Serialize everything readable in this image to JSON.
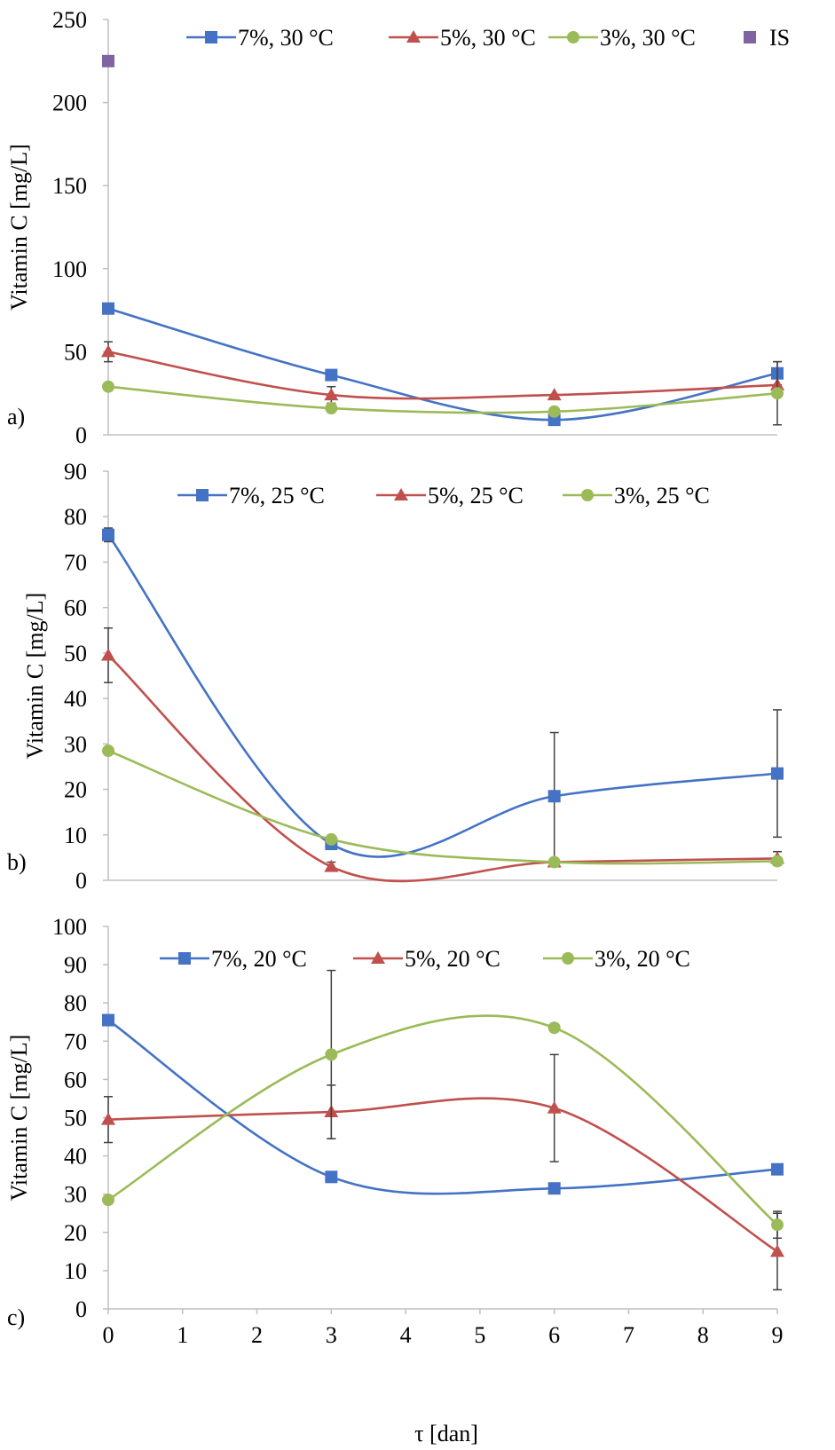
{
  "chart_data": [
    {
      "type": "line",
      "panel_label": "a)",
      "ylabel": "Vitamin C [mg/L]",
      "xlabel": "",
      "x": [
        0,
        3,
        6,
        9
      ],
      "xlim": [
        0,
        9
      ],
      "ylim": [
        0,
        250
      ],
      "yticks": [
        "0",
        "50",
        "100",
        "150",
        "200",
        "250"
      ],
      "xticks": [],
      "legend_placement": "top",
      "series": [
        {
          "name": "7%, 30 °C",
          "color": "#4472c4",
          "marker": "square",
          "values": [
            76,
            36,
            9,
            37
          ],
          "errors": [
            0,
            0,
            0,
            7
          ]
        },
        {
          "name": "5%, 30 °C",
          "color": "#c0504d",
          "marker": "triangle",
          "values": [
            50,
            24,
            24,
            30
          ],
          "errors": [
            6,
            5,
            0,
            0
          ]
        },
        {
          "name": "3%, 30 °C",
          "color": "#9bbb59",
          "marker": "circle",
          "values": [
            29,
            16,
            14,
            25
          ],
          "errors": [
            0,
            0,
            0,
            19
          ]
        }
      ],
      "points": [
        {
          "name": "IS",
          "color": "#8064a2",
          "marker": "square",
          "x": 0,
          "y": 225
        }
      ]
    },
    {
      "type": "line",
      "panel_label": "b)",
      "ylabel": "Vitamin C [mg/L]",
      "xlabel": "",
      "x": [
        0,
        3,
        6,
        9
      ],
      "xlim": [
        0,
        9
      ],
      "ylim": [
        0,
        90
      ],
      "yticks": [
        "0",
        "10",
        "20",
        "30",
        "40",
        "50",
        "60",
        "70",
        "80",
        "90"
      ],
      "xticks": [],
      "legend_placement": "top",
      "series": [
        {
          "name": "7%, 25 °C",
          "color": "#4472c4",
          "marker": "square",
          "values": [
            76,
            8,
            18.5,
            23.5
          ],
          "errors": [
            1.5,
            0,
            14,
            14
          ]
        },
        {
          "name": "5%, 25 °C",
          "color": "#c0504d",
          "marker": "triangle",
          "values": [
            49.5,
            3,
            4,
            4.8
          ],
          "errors": [
            6,
            1,
            0,
            1.5
          ]
        },
        {
          "name": "3%, 25 °C",
          "color": "#9bbb59",
          "marker": "circle",
          "values": [
            28.5,
            9,
            4,
            4.2
          ],
          "errors": [
            0,
            0,
            0,
            0
          ]
        }
      ],
      "points": []
    },
    {
      "type": "line",
      "panel_label": "c)",
      "ylabel": "Vitamin C [mg/L]",
      "xlabel": "τ [dan]",
      "x": [
        0,
        3,
        6,
        9
      ],
      "xlim": [
        0,
        9
      ],
      "ylim": [
        0,
        100
      ],
      "yticks": [
        "0",
        "10",
        "20",
        "30",
        "40",
        "50",
        "60",
        "70",
        "80",
        "90",
        "100"
      ],
      "xticks": [
        "0",
        "1",
        "2",
        "3",
        "4",
        "5",
        "6",
        "7",
        "8",
        "9"
      ],
      "legend_placement": "top",
      "series": [
        {
          "name": "7%, 20 °C",
          "color": "#4472c4",
          "marker": "square",
          "values": [
            75.5,
            34.5,
            31.5,
            36.5
          ],
          "errors": [
            0,
            0,
            0,
            0
          ]
        },
        {
          "name": "5%, 20 °C",
          "color": "#c0504d",
          "marker": "triangle",
          "values": [
            49.5,
            51.5,
            52.5,
            15
          ],
          "errors": [
            6,
            7,
            14,
            10
          ]
        },
        {
          "name": "3%, 20 °C",
          "color": "#9bbb59",
          "marker": "circle",
          "values": [
            28.5,
            66.5,
            73.5,
            22
          ],
          "errors": [
            0,
            22,
            1,
            3.5
          ]
        }
      ],
      "points": []
    }
  ]
}
